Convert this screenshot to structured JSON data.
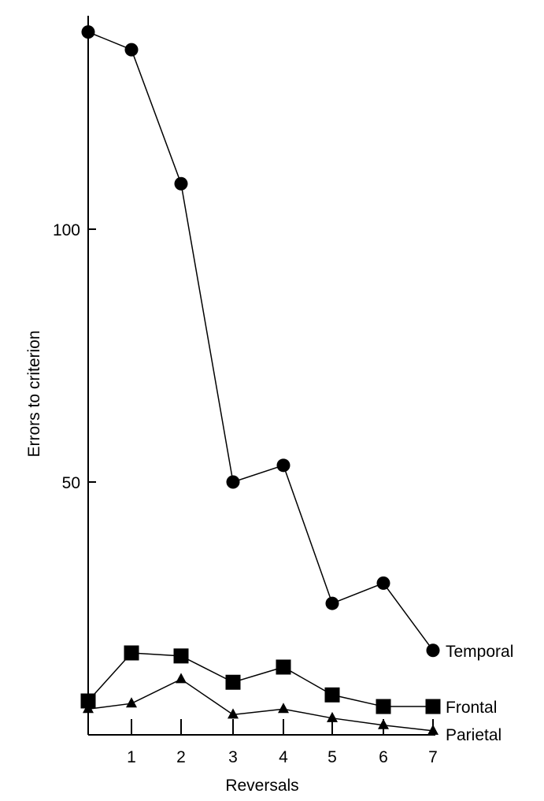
{
  "chart_data": {
    "type": "line",
    "title": "",
    "xlabel": "Reversals",
    "ylabel": "Errors to criterion",
    "x": [
      0,
      1,
      2,
      3,
      4,
      5,
      6,
      7
    ],
    "xticks": [
      "1",
      "2",
      "3",
      "4",
      "5",
      "6",
      "7"
    ],
    "yticks": [
      "50",
      "100"
    ],
    "ylim": [
      0,
      140
    ],
    "grid": false,
    "legend": "inline-right",
    "series": [
      {
        "name": "Temporal",
        "marker": "circle",
        "values": [
          139,
          135.5,
          109,
          50,
          53.3,
          26,
          30,
          16.7
        ]
      },
      {
        "name": "Frontal",
        "marker": "square",
        "values": [
          6.7,
          16.2,
          15.6,
          10.4,
          13.4,
          7.9,
          5.6,
          5.6
        ]
      },
      {
        "name": "Parietal",
        "marker": "triangle",
        "values": [
          5.1,
          6.2,
          11,
          4,
          5.1,
          3.3,
          1.9,
          0.8
        ]
      }
    ]
  }
}
